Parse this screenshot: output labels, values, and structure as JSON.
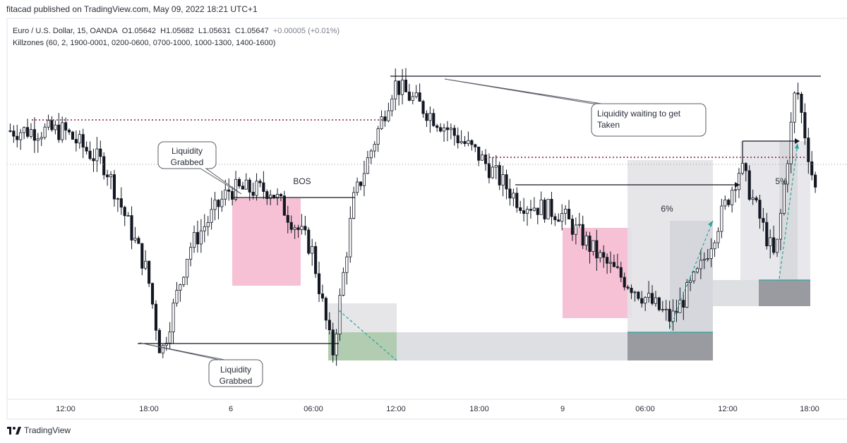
{
  "publisher_line": "fitacad published on TradingView.com, May 09, 2022 18:21 UTC+1",
  "header": {
    "symbol": "Euro / U.S. Dollar, 15, OANDA",
    "open_label": "O",
    "open": "1.05642",
    "high_label": "H",
    "high": "1.05682",
    "low_label": "L",
    "low": "1.05631",
    "close_label": "C",
    "close": "1.05647",
    "change": "+0.00005 (+0.01%)",
    "indicator": "Killzones (60, 2, 1900-0001, 0200-0600, 0700-1000, 1000-1300, 1400-1600)"
  },
  "annotations": {
    "liquidity_grabbed_top": [
      "Liquidity",
      "Grabbed"
    ],
    "liquidity_grabbed_bottom": [
      "Liquidity",
      "Grabbed"
    ],
    "bos": "BOS",
    "liquidity_waiting": [
      "Liquidity waiting to get",
      "Taken"
    ],
    "pct_6": "6%",
    "pct_5": "5%"
  },
  "brand": "TradingView",
  "colors": {
    "bull": "#ffffff",
    "bear": "#131722",
    "wick": "#131722",
    "liquidity_line": "#8b1a4a",
    "pink_zone": "#f4b6cc",
    "grey_zone": "#dedfe3",
    "dark_grey_zone": "#9a9ba0",
    "green_zone": "#a8c7a9",
    "teal_dashed": "#2aa39a"
  },
  "chart_data": {
    "type": "candlestick",
    "symbol": "EURUSD",
    "timeframe": "15",
    "x_tick_labels": [
      "12:00",
      "18:00",
      "6",
      "06:00",
      "12:00",
      "18:00",
      "9",
      "06:00",
      "12:00",
      "18:00"
    ],
    "price_path": [
      [
        "12:00",
        1.059
      ],
      [
        "15:00",
        1.0575
      ],
      [
        "18:00",
        1.053
      ],
      [
        "19:00",
        1.0495
      ],
      [
        "21:00",
        1.054
      ],
      [
        "6",
        1.0565
      ],
      [
        "03:00",
        1.0565
      ],
      [
        "06:00",
        1.054
      ],
      [
        "07:30",
        1.0495
      ],
      [
        "09:00",
        1.056
      ],
      [
        "12:00",
        1.061
      ],
      [
        "15:00",
        1.0595
      ],
      [
        "18:00",
        1.058
      ],
      [
        "21:00",
        1.056
      ],
      [
        "9",
        1.0555
      ],
      [
        "03:00",
        1.0535
      ],
      [
        "06:00",
        1.052
      ],
      [
        "08:00",
        1.051
      ],
      [
        "10:00",
        1.053
      ],
      [
        "13:00",
        1.0575
      ],
      [
        "15:30",
        1.0535
      ],
      [
        "17:00",
        1.061
      ],
      [
        "18:21",
        1.0565
      ]
    ],
    "last_close": 1.05647,
    "grid": false
  }
}
